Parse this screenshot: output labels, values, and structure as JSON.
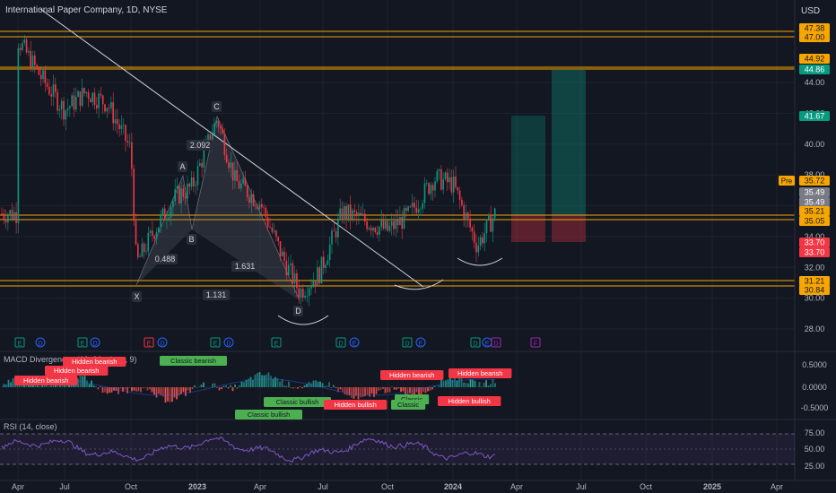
{
  "header": {
    "symbol_title": "International Paper Company, 1D, NYSE",
    "currency": "USD"
  },
  "price_axis": {
    "ticks": [
      "44.00",
      "42.00",
      "40.00",
      "38.00",
      "36.00",
      "34.00",
      "32.00",
      "30.00",
      "28.00"
    ],
    "tags": [
      {
        "text": "47.38",
        "color": "#f7a600"
      },
      {
        "text": "47.00",
        "color": "#f7a600"
      },
      {
        "text": "44.92",
        "color": "#f7a600"
      },
      {
        "text": "44.86",
        "color": "#089981"
      },
      {
        "text": "41.67",
        "color": "#089981"
      },
      {
        "text": "35.72",
        "color": "#f7a600"
      },
      {
        "text": "35.49",
        "color": "#787b86"
      },
      {
        "text": "35.49",
        "color": "#787b86"
      },
      {
        "text": "35.21",
        "color": "#f7a600"
      },
      {
        "text": "35.05",
        "color": "#f7a600"
      },
      {
        "text": "33.70",
        "color": "#f23645"
      },
      {
        "text": "33.70",
        "color": "#f23645"
      },
      {
        "text": "31.21",
        "color": "#f7a600"
      },
      {
        "text": "30.84",
        "color": "#f7a600"
      }
    ],
    "pre_label": "Pre"
  },
  "time_axis": {
    "labels": [
      "Apr",
      "Jul",
      "Oct",
      "2023",
      "Apr",
      "Jul",
      "Oct",
      "2024",
      "Apr",
      "Jul",
      "Oct",
      "2025",
      "Apr"
    ]
  },
  "pattern": {
    "points": {
      "X": "X",
      "A": "A",
      "B": "B",
      "C": "C",
      "D": "D"
    },
    "ratios": [
      "2.092",
      "0.488",
      "1.631",
      "1.131"
    ]
  },
  "events": [
    "E",
    "D",
    "E",
    "D",
    "E",
    "D",
    "E",
    "D",
    "E",
    "D",
    "E",
    "D",
    "E",
    "D",
    "E",
    "D",
    "F",
    "E"
  ],
  "macd": {
    "title": "MACD Divergences (12, 26, close, 9)",
    "axis": [
      "0.5000",
      "0.0000",
      "-0.5000"
    ],
    "labels": [
      {
        "text": "Hidden bearish",
        "kind": "bear"
      },
      {
        "text": "Hidden bearish",
        "kind": "bear"
      },
      {
        "text": "Hidden bearish",
        "kind": "bear"
      },
      {
        "text": "Classic bearish",
        "kind": "bull"
      },
      {
        "text": "Classic bullish",
        "kind": "bull"
      },
      {
        "text": "Classic bullish",
        "kind": "bull"
      },
      {
        "text": "Hidden bullish",
        "kind": "bear"
      },
      {
        "text": "Hidden bearish",
        "kind": "bear"
      },
      {
        "text": "Classic",
        "kind": "bull"
      },
      {
        "text": "Classic",
        "kind": "bull"
      },
      {
        "text": "Hidden bullish",
        "kind": "bear"
      },
      {
        "text": "Hidden bearish",
        "kind": "bear"
      }
    ]
  },
  "rsi": {
    "title": "RSI (14, close)",
    "axis": [
      "75.00",
      "50.00",
      "25.00"
    ]
  },
  "colors": {
    "background": "#131722",
    "up": "#089981",
    "down": "#f23645",
    "level": "#f7a600",
    "rsi": "#7e57c2"
  },
  "chart_data": {
    "type": "candlestick",
    "title": "International Paper Company, 1D, NYSE",
    "ylim": [
      27,
      48.5
    ],
    "price_series": [
      [
        "2022-04",
        46.8
      ],
      [
        "2022-05",
        44.4
      ],
      [
        "2022-06",
        42.2
      ],
      [
        "2022-07",
        43.4
      ],
      [
        "2022-08",
        42.6
      ],
      [
        "2022-09",
        39.6
      ],
      [
        "2022-10",
        32.2
      ],
      [
        "2022-11",
        34.4
      ],
      [
        "2022-12",
        36.6
      ],
      [
        "2023-01",
        37.2
      ],
      [
        "2023-02",
        41.7
      ],
      [
        "2023-03",
        37.6
      ],
      [
        "2023-04",
        36.2
      ],
      [
        "2023-05",
        32.8
      ],
      [
        "2023-06",
        30.4
      ],
      [
        "2023-07",
        31.6
      ],
      [
        "2023-08",
        35.6
      ],
      [
        "2023-09",
        35.0
      ],
      [
        "2023-10",
        34.4
      ],
      [
        "2023-11",
        35.4
      ],
      [
        "2023-12",
        37.8
      ],
      [
        "2024-01",
        37.4
      ],
      [
        "2024-02",
        33.4
      ],
      [
        "2024-03",
        35.5
      ]
    ],
    "horizontal_levels": [
      47.38,
      47.0,
      44.92,
      44.86,
      35.21,
      35.05,
      31.21,
      30.84
    ],
    "harmonic_pattern": {
      "X": 31.0,
      "A": 38.6,
      "B": 34.6,
      "C": 41.6,
      "D": 30.2,
      "ratios": [
        2.092,
        0.488,
        1.631,
        1.131
      ]
    },
    "positions": [
      {
        "entry": 35.21,
        "target": 41.67,
        "stop": 33.7
      },
      {
        "entry": 35.21,
        "target": 44.86,
        "stop": 33.7
      }
    ],
    "indicators": [
      "MACD Divergences (12, 26, close, 9)",
      "RSI (14, close)"
    ]
  }
}
